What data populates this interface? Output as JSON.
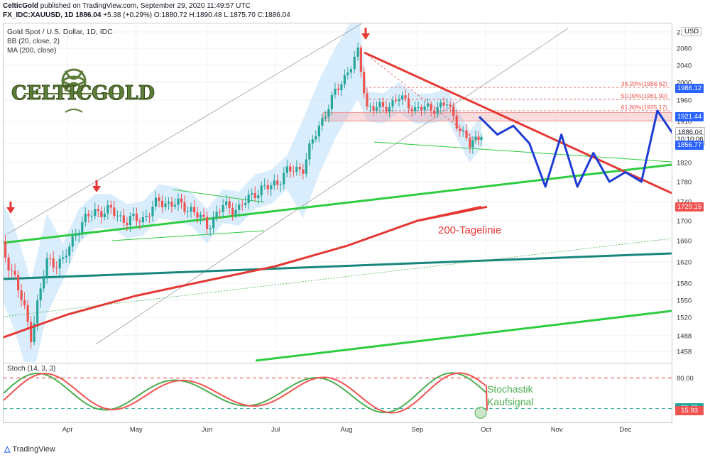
{
  "header": {
    "publisher": "CelticGold",
    "published_text": " published on TradingView.com, September 29, 2020 11:49:57 UTC",
    "symbol": "FX_IDC:XAUUSD, 1D",
    "last": "1886.04",
    "change": "+5.38 (+0.29%)",
    "open_label": "O:",
    "open": "1880.72",
    "high_label": "H:",
    "high": "1890.48",
    "low_label": "L:",
    "low": "1875.70",
    "close_label": "C:",
    "close": "1886.04"
  },
  "legend": {
    "title": "Gold Spot / U.S. Dollar, 1D, IDC",
    "bb": "BB (20, close, 2)",
    "ma": "MA (200, close)"
  },
  "logo": {
    "text": "CELTICGOLD"
  },
  "annotations": {
    "ma200_label": "200-Tagelinie",
    "stoch_label_1": "Stochastik",
    "stoch_label_2": "Kaufsignal"
  },
  "fib_levels": [
    {
      "label": "38,20%(1988,62)",
      "value": 1988.62
    },
    {
      "label": "50,00%(1961,90)",
      "value": 1961.9
    },
    {
      "label": "61,80%(1935,17)",
      "value": 1935.17
    }
  ],
  "price_tags": [
    {
      "text": "1986.12",
      "value": 1986.12,
      "color": "#2962ff"
    },
    {
      "text": "1921.44",
      "value": 1921.44,
      "color": "#2962ff"
    },
    {
      "text": "1886.04",
      "value": 1886.04,
      "color": "#ffffff"
    },
    {
      "text": "10:10:06",
      "value": 1871.0,
      "color": "#ffffff"
    },
    {
      "text": "1856.77",
      "value": 1856.77,
      "color": "#2962ff"
    },
    {
      "text": "1729.15",
      "value": 1729.15,
      "color": "#ef5350"
    }
  ],
  "stoch_tags": [
    {
      "text": "21.48",
      "value": 21.48,
      "color": "#26a69a"
    },
    {
      "text": "15.93",
      "value": 15.93,
      "color": "#ef5350"
    }
  ],
  "stoch": {
    "title": "Stoch (14, 3, 3)"
  },
  "footer": {
    "brand": "TradingView"
  },
  "currency": "USD",
  "chart_data": {
    "type": "line",
    "title": "Gold Spot / U.S. Dollar, 1D, IDC",
    "xlabel": "",
    "ylabel": "",
    "ylim": [
      1440,
      2120
    ],
    "y_ticks": [
      1458,
      1488,
      1520,
      1550,
      1580,
      1620,
      1660,
      1700,
      1740,
      1780,
      1820,
      1860,
      1910,
      1960,
      2000,
      2040,
      2080,
      2120
    ],
    "x_ticks": [
      "Apr",
      "May",
      "Jun",
      "Jul",
      "Aug",
      "Sep",
      "Oct",
      "Nov",
      "Dec"
    ],
    "series": [
      {
        "name": "XAUUSD",
        "x": [
          "Mar 2",
          "Mar 9",
          "Mar 16",
          "Mar 23",
          "Mar 30",
          "Apr 6",
          "Apr 13",
          "Apr 20",
          "Apr 27",
          "May 4",
          "May 11",
          "May 18",
          "May 25",
          "Jun 1",
          "Jun 8",
          "Jun 15",
          "Jun 22",
          "Jun 29",
          "Jul 6",
          "Jul 13",
          "Jul 20",
          "Jul 27",
          "Aug 3",
          "Aug 6",
          "Aug 10",
          "Aug 17",
          "Aug 24",
          "Aug 31",
          "Sep 7",
          "Sep 14",
          "Sep 21",
          "Sep 24",
          "Sep 29"
        ],
        "values": [
          1660,
          1590,
          1490,
          1620,
          1620,
          1690,
          1720,
          1720,
          1700,
          1705,
          1740,
          1735,
          1725,
          1690,
          1730,
          1725,
          1760,
          1770,
          1800,
          1810,
          1900,
          1975,
          2040,
          2067,
          1945,
          1940,
          1965,
          1940,
          1940,
          1950,
          1880,
          1855,
          1886
        ]
      },
      {
        "name": "MA (200, close)",
        "x": [
          "Mar 2",
          "Apr 1",
          "May 1",
          "Jun 1",
          "Jul 1",
          "Aug 1",
          "Sep 1",
          "Sep 29"
        ],
        "values": [
          1482,
          1525,
          1558,
          1585,
          1612,
          1650,
          1700,
          1729.15
        ]
      }
    ],
    "projection": {
      "x": [
        "Sep 29",
        "Oct 6",
        "Oct 13",
        "Oct 20",
        "Oct 27",
        "Nov 3",
        "Nov 10",
        "Nov 17",
        "Nov 24",
        "Dec 1",
        "Dec 8",
        "Dec 15",
        "Dec 22"
      ],
      "values": [
        1921,
        1880,
        1900,
        1860,
        1770,
        1880,
        1770,
        1840,
        1780,
        1800,
        1780,
        1935,
        1880
      ]
    },
    "stochastic": {
      "ylim": [
        0,
        100
      ],
      "levels": [
        80,
        20
      ],
      "k_last": 21.48,
      "d_last": 15.93
    },
    "grid": true,
    "legend_position": "top-left"
  }
}
